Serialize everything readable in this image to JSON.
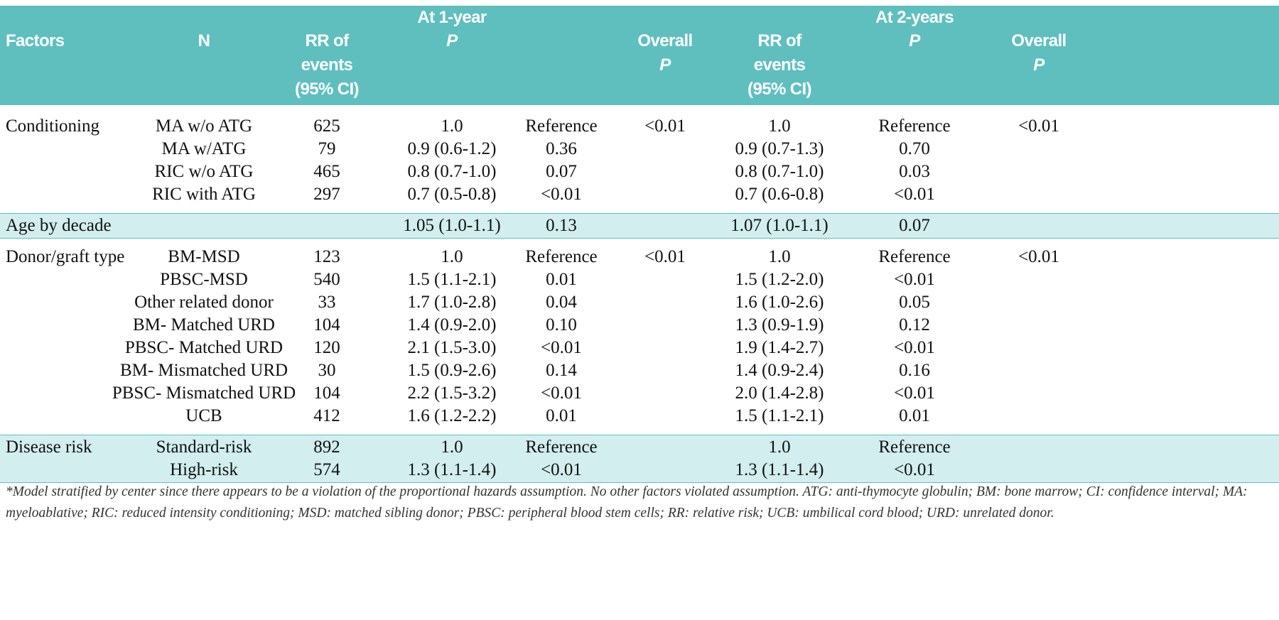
{
  "header": {
    "columns": [
      {
        "lines": [
          "Factors"
        ]
      },
      {
        "lines": [
          "N"
        ]
      },
      {
        "lines": [
          "RR of",
          "events",
          "(95% CI)"
        ]
      },
      {
        "group": "At 1-year",
        "lines": [
          "P"
        ],
        "italic_last": true
      },
      null,
      {
        "lines": [
          "Overall",
          "P"
        ],
        "italic_last": true
      },
      {
        "lines": [
          "RR of",
          "events",
          "(95% CI)"
        ]
      },
      {
        "group": "At 2-years",
        "lines": [
          "P"
        ],
        "italic_last": true
      },
      {
        "lines": [
          "Overall",
          "P"
        ],
        "italic_last": true
      }
    ]
  },
  "groups": [
    {
      "shaded": false,
      "rows": [
        [
          "Conditioning",
          "MA w/o ATG",
          "625",
          "1.0",
          "Reference",
          "<0.01",
          "1.0",
          "Reference",
          "<0.01"
        ],
        [
          null,
          "MA w/ATG",
          "79",
          "0.9 (0.6-1.2)",
          "0.36",
          null,
          "0.9 (0.7-1.3)",
          "0.70",
          null
        ],
        [
          null,
          "RIC w/o ATG",
          "465",
          "0.8 (0.7-1.0)",
          "0.07",
          null,
          "0.8 (0.7-1.0)",
          "0.03",
          null
        ],
        [
          null,
          "RIC with ATG",
          "297",
          "0.7 (0.5-0.8)",
          "<0.01",
          null,
          "0.7 (0.6-0.8)",
          "<0.01",
          null
        ]
      ]
    },
    {
      "shaded": true,
      "rows": [
        [
          "Age by decade",
          null,
          null,
          "1.05 (1.0-1.1)",
          "0.13",
          null,
          "1.07 (1.0-1.1)",
          "0.07",
          null
        ]
      ]
    },
    {
      "shaded": false,
      "rows": [
        [
          "Donor/graft type",
          "BM-MSD",
          "123",
          "1.0",
          "Reference",
          "<0.01",
          "1.0",
          "Reference",
          "<0.01"
        ],
        [
          null,
          "PBSC-MSD",
          "540",
          "1.5 (1.1-2.1)",
          "0.01",
          null,
          "1.5 (1.2-2.0)",
          "<0.01",
          null
        ],
        [
          null,
          "Other related donor",
          "33",
          "1.7 (1.0-2.8)",
          "0.04",
          null,
          "1.6 (1.0-2.6)",
          "0.05",
          null
        ],
        [
          null,
          "BM- Matched URD",
          "104",
          "1.4 (0.9-2.0)",
          "0.10",
          null,
          "1.3 (0.9-1.9)",
          "0.12",
          null
        ],
        [
          null,
          "PBSC- Matched URD",
          "120",
          "2.1 (1.5-3.0)",
          "<0.01",
          null,
          "1.9 (1.4-2.7)",
          "<0.01",
          null
        ],
        [
          null,
          "BM- Mismatched URD",
          "30",
          "1.5 (0.9-2.6)",
          "0.14",
          null,
          "1.4 (0.9-2.4)",
          "0.16",
          null
        ],
        [
          null,
          "PBSC- Mismatched URD",
          "104",
          "2.2 (1.5-3.2)",
          "<0.01",
          null,
          "2.0 (1.4-2.8)",
          "<0.01",
          null
        ],
        [
          null,
          "UCB",
          "412",
          "1.6 (1.2-2.2)",
          "0.01",
          null,
          "1.5 (1.1-2.1)",
          "0.01",
          null
        ]
      ]
    },
    {
      "shaded": true,
      "rows": [
        [
          "Disease risk",
          "Standard-risk",
          "892",
          "1.0",
          "Reference",
          null,
          "1.0",
          "Reference",
          null
        ],
        [
          null,
          "High-risk",
          "574",
          "1.3 (1.1-1.4)",
          "<0.01",
          null,
          "1.3 (1.1-1.4)",
          "<0.01",
          null
        ]
      ]
    }
  ],
  "footnote": "*Model stratified by center since there appears to be a violation of the proportional hazards assumption. No other factors violated assumption. ATG: anti-thymocyte globulin; BM: bone marrow; CI: confidence interval; MA: myeloablative; RIC: reduced intensity conditioning; MSD: matched sibling donor; PBSC: peripheral blood stem cells; RR: relative risk; UCB: umbilical cord blood; URD: unrelated donor."
}
